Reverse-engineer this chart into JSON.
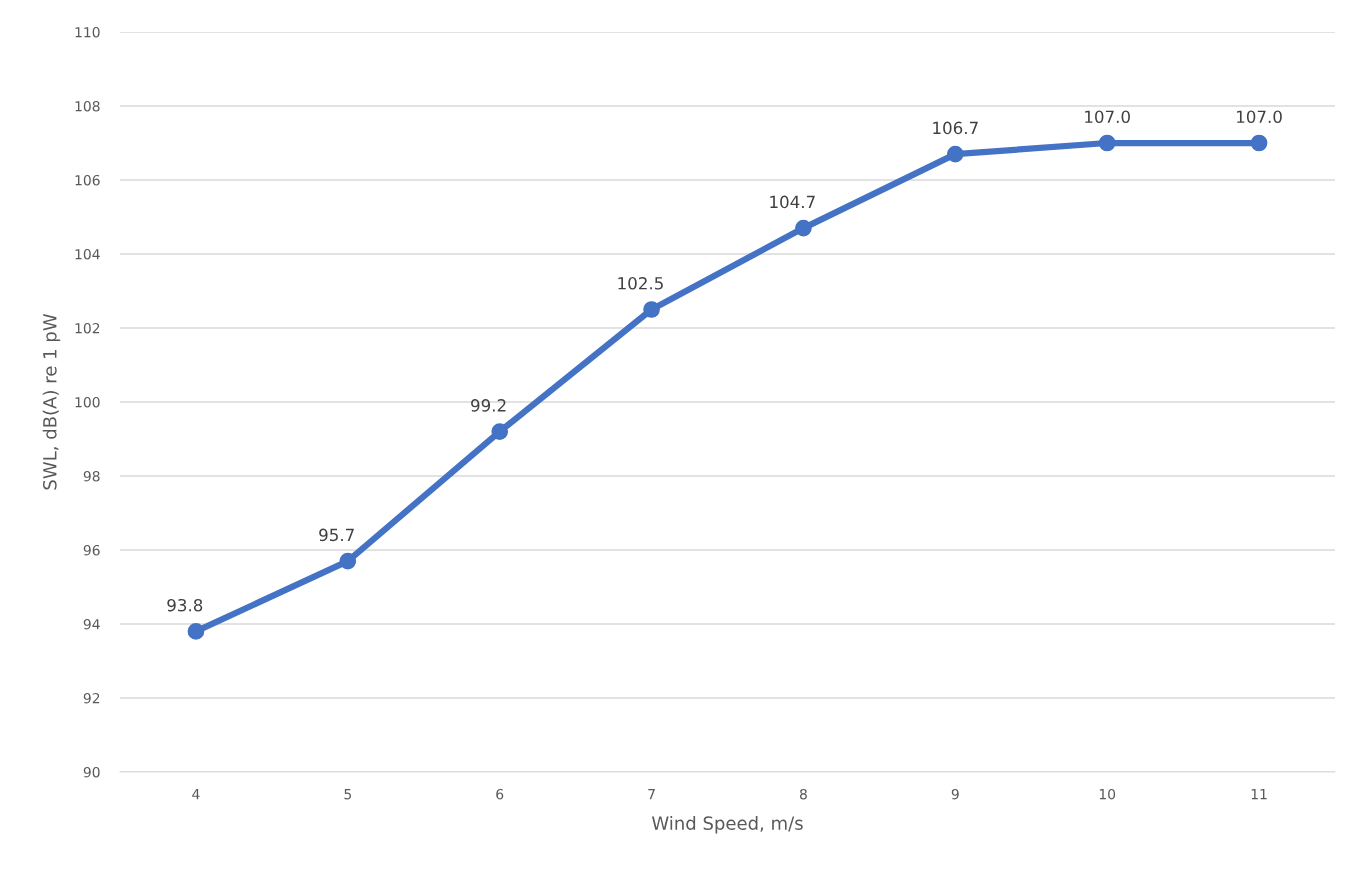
{
  "chart_data": {
    "type": "line",
    "xlabel": "Wind Speed, m/s",
    "ylabel": "SWL, dB(A) re 1 pW",
    "categories": [
      "4",
      "5",
      "6",
      "7",
      "8",
      "9",
      "10",
      "11"
    ],
    "series": [
      {
        "color": "#4472c4",
        "values": [
          93.8,
          95.7,
          99.2,
          102.5,
          104.7,
          106.7,
          107.0,
          107.0
        ],
        "value_labels": [
          "93.8",
          "95.7",
          "99.2",
          "102.5",
          "104.7",
          "106.7",
          "107.0",
          "107.0"
        ]
      }
    ],
    "ylim": [
      90,
      110
    ],
    "yticks": [
      90,
      92,
      94,
      96,
      98,
      100,
      102,
      104,
      106,
      108,
      110
    ],
    "grid": "y",
    "marker": "circle",
    "line_style": "solid",
    "legend": false
  }
}
